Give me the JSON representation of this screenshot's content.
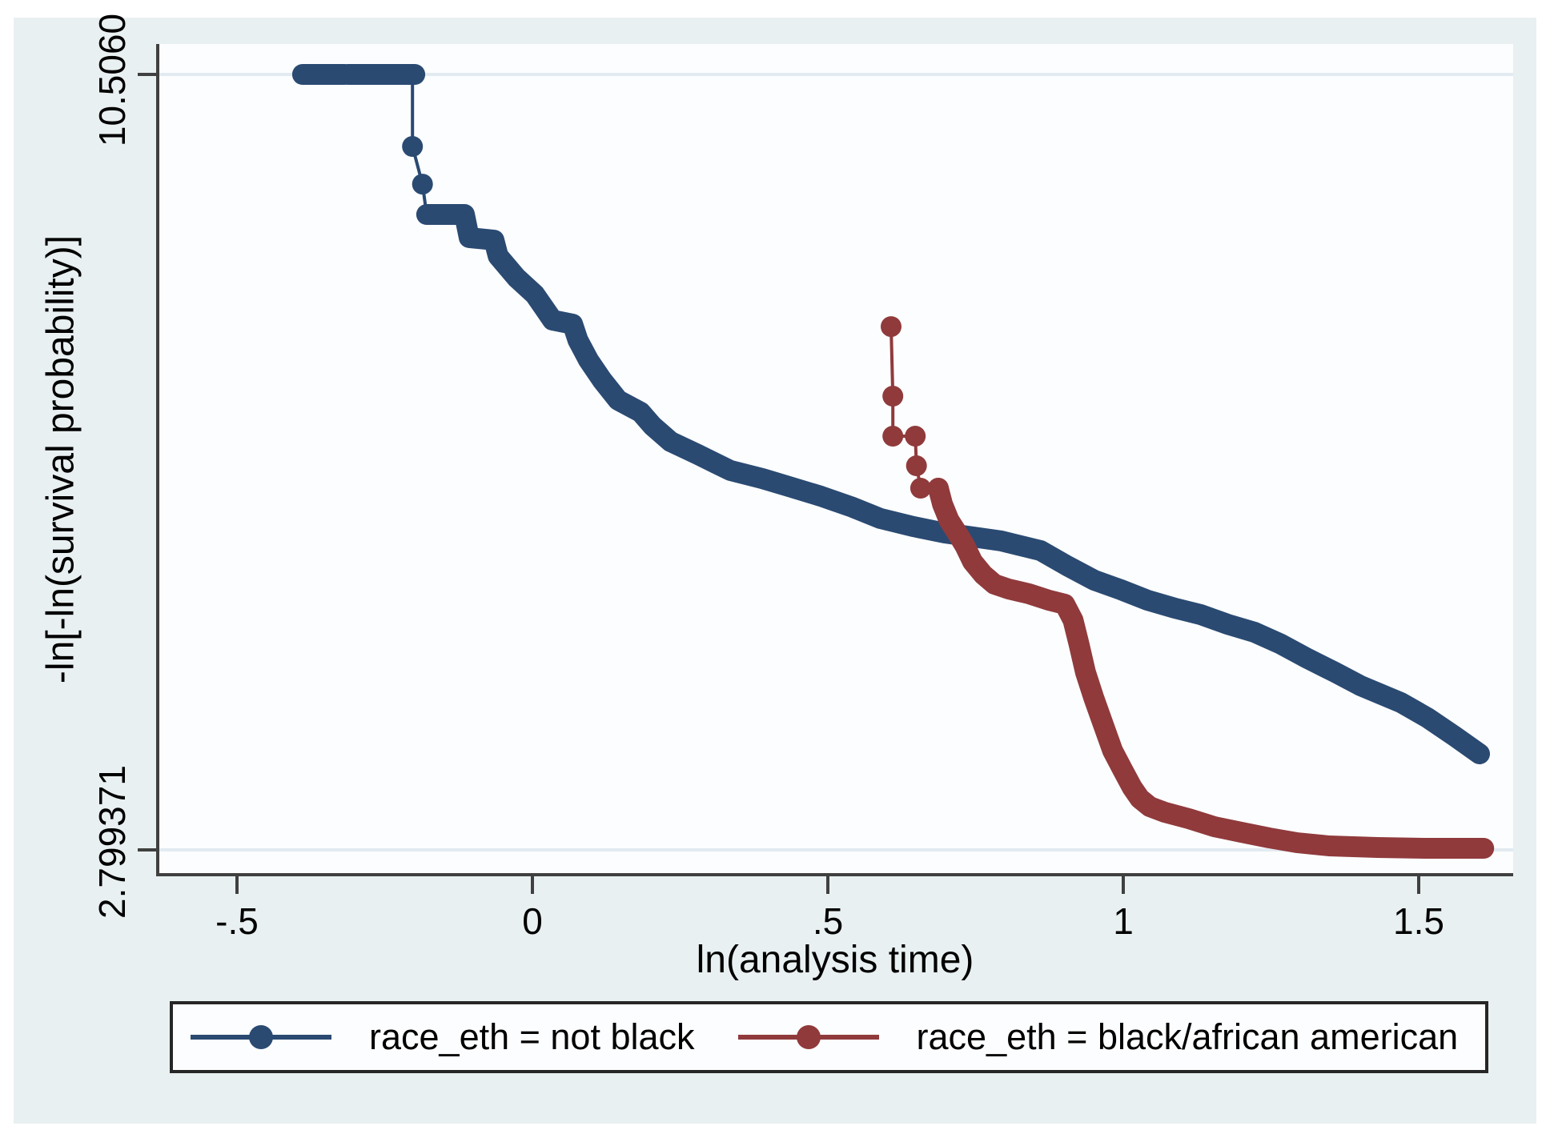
{
  "chart_data": {
    "type": "line",
    "description": "Stata log-log survival plot (proportional-hazards check)",
    "background_color": "#e9f0f1",
    "plot_background": "#fcfdfe",
    "axis_color": "#404040",
    "grid_color": "#e2ebf1",
    "x_axis": {
      "label": "ln(analysis time)",
      "ticks": [
        -0.5,
        0,
        0.5,
        1,
        1.5
      ],
      "tick_labels": [
        "-.5",
        "0",
        ".5",
        "1",
        "1.5"
      ],
      "range": [
        -0.64,
        1.66
      ],
      "grid": false
    },
    "y_axis": {
      "label": "-ln[-ln(survival probability)]",
      "ticks": [
        10.506,
        2.799371
      ],
      "tick_labels": [
        "10.5060",
        "2.799371"
      ],
      "range": [
        2.55,
        10.81
      ],
      "grid": true
    },
    "legend_position": "bottom",
    "series": [
      {
        "name": "race_eth = not black",
        "color": "#2a4a72",
        "bands": [
          [
            [
              -0.389,
              10.506
            ],
            [
              -0.318,
              10.506
            ]
          ],
          [
            [
              -0.312,
              10.506
            ],
            [
              -0.199,
              10.506
            ]
          ],
          [
            [
              -0.179,
              9.114
            ],
            [
              -0.115,
              9.114
            ],
            [
              -0.107,
              8.884
            ],
            [
              -0.065,
              8.86
            ],
            [
              -0.058,
              8.701
            ],
            [
              -0.027,
              8.486
            ],
            [
              0.004,
              8.319
            ],
            [
              0.02,
              8.184
            ],
            [
              0.034,
              8.064
            ],
            [
              0.068,
              8.025
            ],
            [
              0.077,
              7.866
            ],
            [
              0.095,
              7.667
            ],
            [
              0.118,
              7.468
            ],
            [
              0.145,
              7.269
            ],
            [
              0.183,
              7.15
            ],
            [
              0.203,
              7.015
            ],
            [
              0.234,
              6.856
            ],
            [
              0.28,
              6.729
            ],
            [
              0.335,
              6.57
            ],
            [
              0.389,
              6.49
            ],
            [
              0.434,
              6.411
            ],
            [
              0.488,
              6.315
            ],
            [
              0.542,
              6.204
            ],
            [
              0.589,
              6.093
            ],
            [
              0.644,
              6.013
            ],
            [
              0.698,
              5.949
            ],
            [
              0.745,
              5.91
            ],
            [
              0.793,
              5.87
            ],
            [
              0.86,
              5.774
            ],
            [
              0.905,
              5.623
            ],
            [
              0.951,
              5.48
            ],
            [
              0.996,
              5.385
            ],
            [
              1.041,
              5.281
            ],
            [
              1.087,
              5.202
            ],
            [
              1.131,
              5.138
            ],
            [
              1.176,
              5.043
            ],
            [
              1.222,
              4.963
            ],
            [
              1.267,
              4.844
            ],
            [
              1.312,
              4.701
            ],
            [
              1.358,
              4.566
            ],
            [
              1.402,
              4.43
            ],
            [
              1.47,
              4.263
            ],
            [
              1.515,
              4.112
            ],
            [
              1.561,
              3.929
            ],
            [
              1.603,
              3.754
            ]
          ]
        ],
        "dot_chain": [
          [
            -0.203,
            10.506
          ],
          [
            -0.203,
            9.79
          ],
          [
            -0.186,
            9.416
          ],
          [
            -0.179,
            9.114
          ]
        ],
        "dots": [
          [
            -0.203,
            9.79
          ],
          [
            -0.186,
            9.416
          ]
        ]
      },
      {
        "name": "race_eth = black/african american",
        "color": "#903a3c",
        "bands": [
          [
            [
              0.687,
              6.394
            ],
            [
              0.694,
              6.235
            ],
            [
              0.705,
              6.076
            ],
            [
              0.718,
              5.957
            ],
            [
              0.732,
              5.822
            ],
            [
              0.745,
              5.663
            ],
            [
              0.763,
              5.535
            ],
            [
              0.782,
              5.44
            ],
            [
              0.806,
              5.392
            ],
            [
              0.84,
              5.345
            ],
            [
              0.874,
              5.281
            ],
            [
              0.901,
              5.241
            ],
            [
              0.915,
              5.082
            ],
            [
              0.925,
              4.844
            ],
            [
              0.936,
              4.565
            ],
            [
              0.95,
              4.311
            ],
            [
              0.966,
              4.048
            ],
            [
              0.982,
              3.786
            ],
            [
              0.999,
              3.595
            ],
            [
              1.015,
              3.42
            ],
            [
              1.028,
              3.309
            ],
            [
              1.045,
              3.229
            ],
            [
              1.07,
              3.174
            ],
            [
              1.111,
              3.11
            ],
            [
              1.154,
              3.03
            ],
            [
              1.199,
              2.975
            ],
            [
              1.247,
              2.919
            ],
            [
              1.294,
              2.871
            ],
            [
              1.348,
              2.839
            ],
            [
              1.43,
              2.823
            ],
            [
              1.511,
              2.815
            ],
            [
              1.61,
              2.815
            ]
          ]
        ],
        "dot_chain": [
          [
            0.607,
            8.0
          ],
          [
            0.61,
            7.309
          ],
          [
            0.61,
            6.911
          ],
          [
            0.648,
            6.911
          ],
          [
            0.65,
            6.617
          ],
          [
            0.657,
            6.394
          ],
          [
            0.687,
            6.394
          ]
        ],
        "dots": [
          [
            0.607,
            8.0
          ],
          [
            0.61,
            7.309
          ],
          [
            0.61,
            6.911
          ],
          [
            0.648,
            6.911
          ],
          [
            0.65,
            6.617
          ],
          [
            0.657,
            6.394
          ],
          [
            0.687,
            6.394
          ]
        ]
      }
    ]
  },
  "legend": {
    "entries": [
      {
        "label": "race_eth = not black",
        "color": "#2a4a72"
      },
      {
        "label": "race_eth = black/african american",
        "color": "#903a3c"
      }
    ]
  }
}
